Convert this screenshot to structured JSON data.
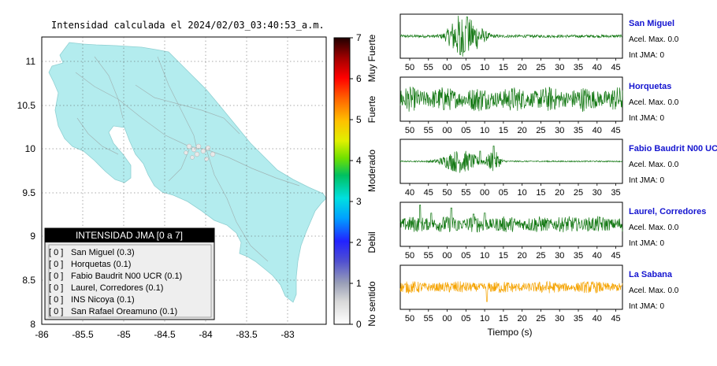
{
  "map": {
    "title": "Intensidad calculada el 2024/02/03_03:40:53_a.m.",
    "xticks": [
      "-86",
      "-85.5",
      "-85",
      "-84.5",
      "-84",
      "-83.5",
      "-83"
    ],
    "yticks": [
      "11",
      "10.5",
      "10",
      "9.5",
      "9",
      "8.5",
      "8"
    ],
    "land_color": "#b3ecee",
    "legend": {
      "header": "INTENSIDAD JMA [0 a 7]",
      "items": [
        {
          "tag": "[ 0 ]",
          "label": "San Miguel (0.3)"
        },
        {
          "tag": "[ 0 ]",
          "label": "Horquetas (0.1)"
        },
        {
          "tag": "[ 0 ]",
          "label": "Fabio Baudrit N00 UCR (0.1)"
        },
        {
          "tag": "[ 0 ]",
          "label": "Laurel, Corredores (0.1)"
        },
        {
          "tag": "[ 0 ]",
          "label": "INS Nicoya (0.1)"
        },
        {
          "tag": "[ 0 ]",
          "label": "San Rafael Oreamuno (0.1)"
        }
      ]
    }
  },
  "colorbar": {
    "ticks": [
      "0",
      "1",
      "2",
      "3",
      "4",
      "5",
      "6",
      "7"
    ],
    "labels": [
      {
        "text": "No sentido",
        "from": 0,
        "to": 1
      },
      {
        "text": "Debil",
        "from": 1,
        "to": 3
      },
      {
        "text": "Moderado",
        "from": 3,
        "to": 4.5
      },
      {
        "text": "Fuerte",
        "from": 4.5,
        "to": 6
      },
      {
        "text": "Muy Fuerte",
        "from": 6,
        "to": 7
      }
    ]
  },
  "waveforms": {
    "xlabel": "Tiempo (s)",
    "panels": [
      {
        "name": "San Miguel",
        "accel": "Acel. Max. 0.0",
        "int": "Int JMA: 0",
        "ticks": [
          "50",
          "55",
          "00",
          "05",
          "10",
          "15",
          "20",
          "25",
          "30",
          "35",
          "40",
          "45"
        ],
        "color": "#137813"
      },
      {
        "name": "Horquetas",
        "accel": "Acel. Max. 0.0",
        "int": "Int JMA: 0",
        "ticks": [
          "50",
          "55",
          "00",
          "05",
          "10",
          "15",
          "20",
          "25",
          "30",
          "35",
          "40",
          "45"
        ],
        "color": "#137813"
      },
      {
        "name": "Fabio Baudrit N00 UCR",
        "accel": "Acel. Max. 0.0",
        "int": "Int JMA: 0",
        "ticks": [
          "40",
          "45",
          "50",
          "55",
          "00",
          "05",
          "10",
          "15",
          "20",
          "25",
          "30",
          "35"
        ],
        "color": "#137813"
      },
      {
        "name": "Laurel, Corredores",
        "accel": "Acel. Max. 0.0",
        "int": "Int JMA: 0",
        "ticks": [
          "50",
          "55",
          "00",
          "05",
          "10",
          "15",
          "20",
          "25",
          "30",
          "35",
          "40",
          "45"
        ],
        "color": "#137813"
      },
      {
        "name": "La Sabana",
        "accel": "Acel. Max. 0.0",
        "int": "Int JMA: 0",
        "ticks": [
          "50",
          "55",
          "00",
          "05",
          "10",
          "15",
          "20",
          "25",
          "30",
          "35",
          "40",
          "45"
        ],
        "color": "#f5a300"
      }
    ]
  },
  "chart_data": [
    {
      "type": "heatmap",
      "title": "Intensidad calculada el 2024/02/03_03:40:53_a.m.",
      "xlim": [
        -86,
        -82.5
      ],
      "ylim": [
        8,
        11.3
      ],
      "xticks": [
        -86,
        -85.5,
        -85,
        -84.5,
        -84,
        -83.5,
        -83
      ],
      "yticks": [
        8,
        8.5,
        9,
        9.5,
        10,
        10.5,
        11
      ],
      "colorbar": {
        "min": 0,
        "max": 7,
        "ticks": [
          0,
          1,
          2,
          3,
          4,
          5,
          6,
          7
        ]
      },
      "legend_placement": "bottom-left",
      "stations": [
        {
          "name": "San Miguel",
          "intensity_class": 0,
          "value": 0.3
        },
        {
          "name": "Horquetas",
          "intensity_class": 0,
          "value": 0.1
        },
        {
          "name": "Fabio Baudrit N00 UCR",
          "intensity_class": 0,
          "value": 0.1
        },
        {
          "name": "Laurel, Corredores",
          "intensity_class": 0,
          "value": 0.1
        },
        {
          "name": "INS Nicoya",
          "intensity_class": 0,
          "value": 0.1
        },
        {
          "name": "San Rafael Oreamuno",
          "intensity_class": 0,
          "value": 0.1
        }
      ]
    },
    {
      "type": "line",
      "xlabel": "Tiempo (s)",
      "series": [
        {
          "name": "San Miguel",
          "acel_max": 0.0,
          "int_jma": 0,
          "burst_tick": "00-05"
        },
        {
          "name": "Horquetas",
          "acel_max": 0.0,
          "int_jma": 0
        },
        {
          "name": "Fabio Baudrit N00 UCR",
          "acel_max": 0.0,
          "int_jma": 0,
          "burst_tick": "50-55"
        },
        {
          "name": "Laurel, Corredores",
          "acel_max": 0.0,
          "int_jma": 0
        },
        {
          "name": "La Sabana",
          "acel_max": 0.0,
          "int_jma": 0
        }
      ]
    }
  ]
}
